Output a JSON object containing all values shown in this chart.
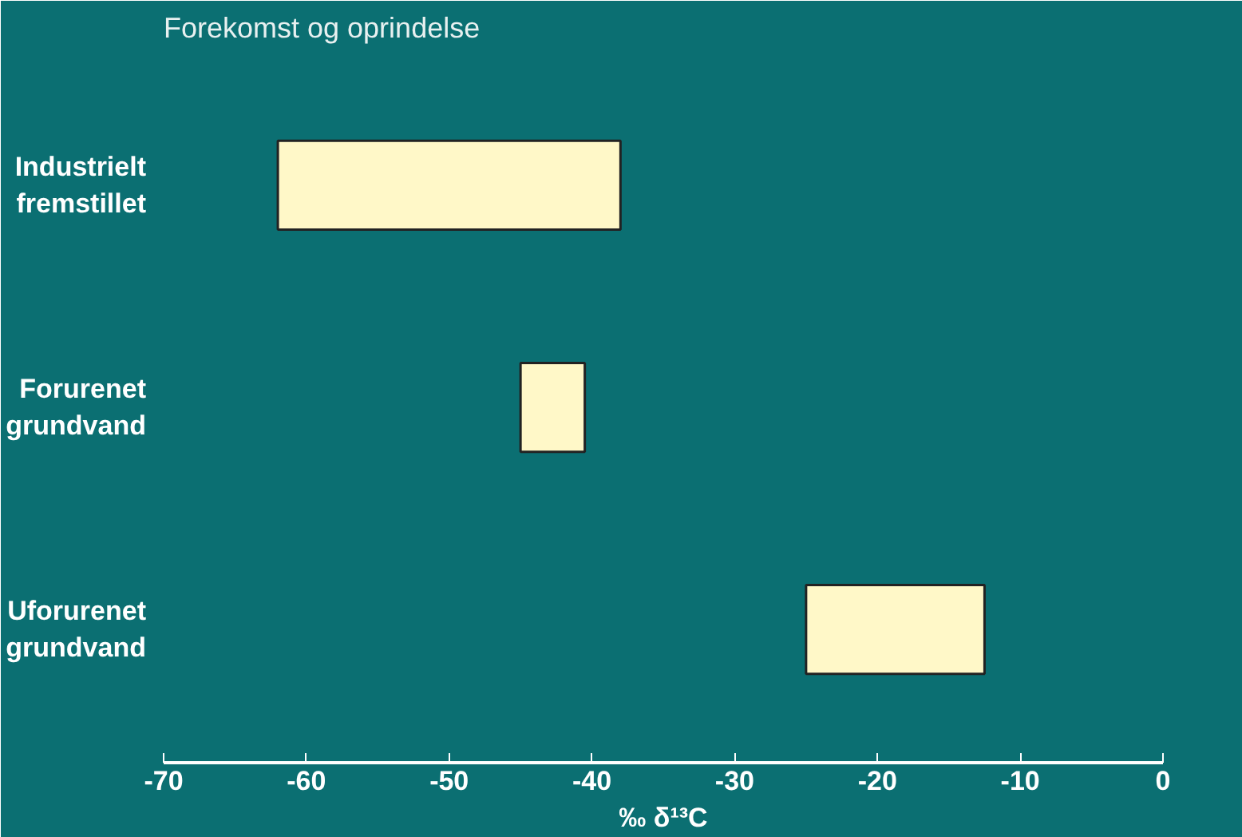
{
  "chart_data": {
    "type": "bar",
    "orientation": "horizontal",
    "title": "Forekomst og oprindelse",
    "xlabel": "‰ δ¹³C",
    "categories": [
      "Industrielt\nfremstillet",
      "Forurenet\ngrundvand",
      "Uforurenet\ngrundvand"
    ],
    "base": [
      -62,
      -45,
      -25
    ],
    "values": [
      24,
      4.5,
      12.5
    ],
    "color": "#fff8c8",
    "xlim": [
      -70,
      0
    ],
    "xticks": [
      -70,
      -60,
      -50,
      -40,
      -30,
      -20,
      -10,
      0
    ],
    "grid": false
  }
}
